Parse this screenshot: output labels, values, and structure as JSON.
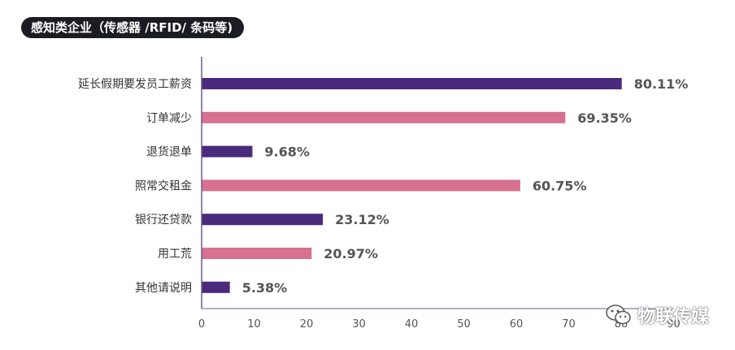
{
  "title": "感知类企业（传感器 /RFID/ 条码等)",
  "watermark": {
    "text": "物联传媒",
    "icon": "wechat-icon"
  },
  "colors": {
    "purple": "#4a2a7d",
    "pink": "#d8708f",
    "axis": "#6e5a8a"
  },
  "chart_data": {
    "type": "bar",
    "orientation": "horizontal",
    "title": "感知类企业（传感器 /RFID/ 条码等)",
    "xlabel": "",
    "ylabel": "",
    "categories": [
      "延长假期要发员工薪资",
      "订单减少",
      "退货退单",
      "照常交租金",
      "银行还贷款",
      "用工荒",
      "其他请说明"
    ],
    "values": [
      80.11,
      69.35,
      9.68,
      60.75,
      23.12,
      20.97,
      5.38
    ],
    "value_labels": [
      "80.11%",
      "69.35%",
      "9.68%",
      "60.75%",
      "23.12%",
      "20.97%",
      "5.38%"
    ],
    "bar_colors": [
      "#4a2a7d",
      "#d8708f",
      "#4a2a7d",
      "#d8708f",
      "#4a2a7d",
      "#d8708f",
      "#4a2a7d"
    ],
    "xlim": [
      0,
      90
    ],
    "xticks": [
      0,
      10,
      20,
      30,
      40,
      50,
      60,
      70,
      80,
      90
    ],
    "grid": false
  }
}
